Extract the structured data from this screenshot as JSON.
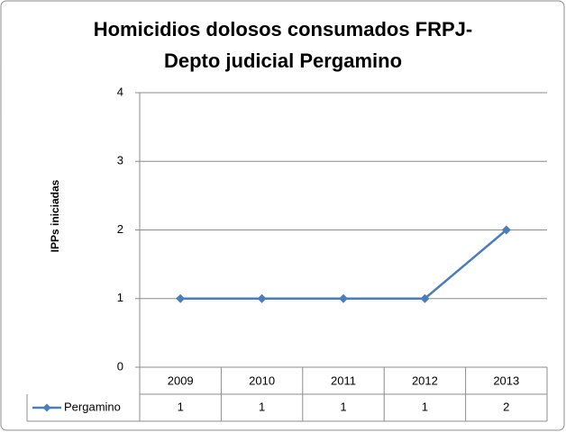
{
  "chart_data": {
    "type": "line",
    "title": [
      "Homicidios dolosos consumados FRPJ-",
      "Depto judicial Pergamino"
    ],
    "y_label": "IPPs iniciadas",
    "categories": [
      "2009",
      "2010",
      "2011",
      "2012",
      "2013"
    ],
    "series": [
      {
        "name": "Pergamino",
        "color": "#4a7ebb",
        "values": [
          1,
          1,
          1,
          1,
          2
        ]
      }
    ],
    "ylim": [
      0,
      4
    ],
    "yticks": [
      0,
      1,
      2,
      3,
      4
    ],
    "grid": true,
    "data_table": true
  }
}
